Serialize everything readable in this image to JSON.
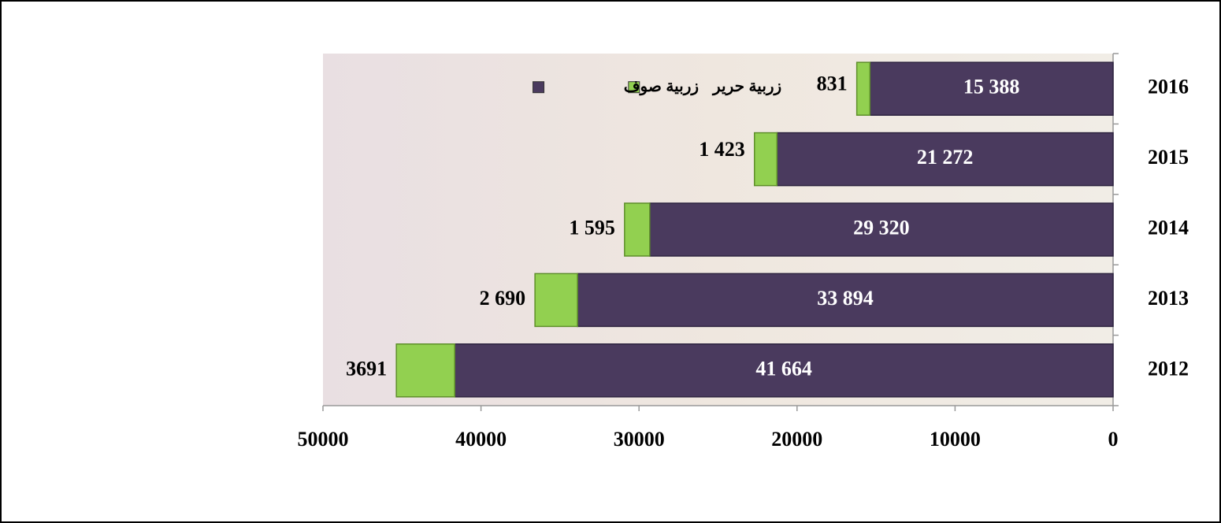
{
  "chart_data": {
    "type": "stacked-bar-horizontal",
    "categories": [
      "2016",
      "2015",
      "2014",
      "2013",
      "2012"
    ],
    "series": [
      {
        "name": "زربية صوف",
        "color": "#4a3a5e",
        "values": [
          15388,
          21272,
          29320,
          33894,
          41664
        ],
        "value_labels": [
          "15 388",
          "21 272",
          "29 320",
          "33 894",
          "41 664"
        ]
      },
      {
        "name": "زربية حرير",
        "color": "#92d050",
        "values": [
          831,
          1423,
          1595,
          2690,
          3691
        ],
        "value_labels": [
          "831",
          "1 423",
          "1 595",
          "2 690",
          "3691"
        ]
      }
    ],
    "xlim": [
      50000,
      0
    ],
    "xticks": [
      50000,
      40000,
      30000,
      20000,
      10000,
      0
    ],
    "legend": "top-left",
    "grid": false
  }
}
